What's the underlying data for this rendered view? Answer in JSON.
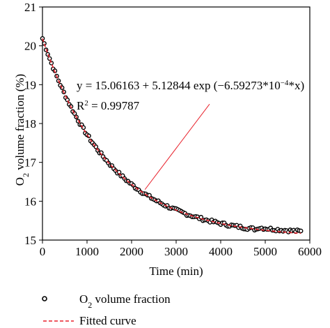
{
  "chart_data": {
    "type": "scatter",
    "xlabel": "Time (min)",
    "ylabel": {
      "main": "O",
      "sub": "2",
      "rest": " volume fraction (%)"
    },
    "xlim": [
      0,
      6000
    ],
    "ylim": [
      15,
      21
    ],
    "xticks": [
      0,
      1000,
      2000,
      3000,
      4000,
      5000,
      6000
    ],
    "yticks": [
      15,
      16,
      17,
      18,
      19,
      20,
      21
    ],
    "grid": false,
    "legend_position": "bottom-left, below plot",
    "series": [
      {
        "name": {
          "main": "O",
          "sub": "2",
          "rest": " volume fraction"
        },
        "marker": "open-circle",
        "color": "#000000",
        "x_range": [
          0,
          5800
        ],
        "step": 40,
        "noise": 0.04
      },
      {
        "name": "Fitted curve",
        "style": "dashed",
        "color": "#e8212b",
        "x_range": [
          0,
          5800
        ]
      }
    ],
    "fit": {
      "a": 15.06163,
      "b": 5.12844,
      "k": -0.000659273
    },
    "annotation": {
      "equation_parts": [
        "y = 15.06163 + 5.12844 exp (−6.59273*10",
        "−4",
        "*x)"
      ],
      "r2_parts": [
        "R",
        "2",
        " = 0.99787"
      ],
      "pointer_color": "#e8212b",
      "pointer_from": [
        3750,
        18.5
      ],
      "pointer_to": [
        2300,
        16.3
      ]
    }
  }
}
